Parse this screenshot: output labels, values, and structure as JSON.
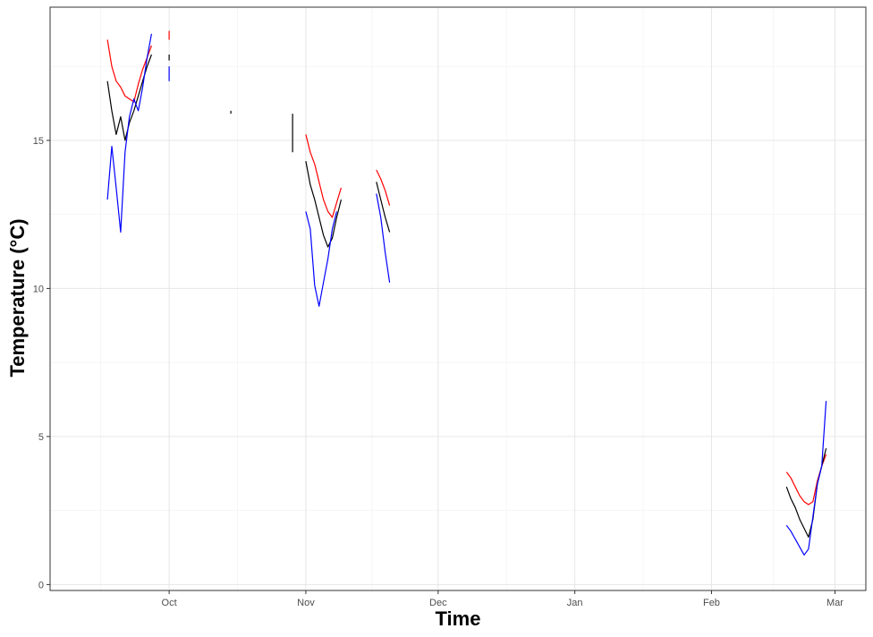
{
  "chart_data": {
    "type": "line",
    "title": "",
    "xlabel": "Time",
    "ylabel": "Temperature (°C)",
    "x_tick_labels": [
      "Oct",
      "Nov",
      "Dec",
      "Jan",
      "Feb",
      "Mar"
    ],
    "x_tick_dates": [
      "2021-10-01",
      "2021-11-01",
      "2021-12-01",
      "2022-01-01",
      "2022-02-01",
      "2022-03-01"
    ],
    "y_ticks": [
      0,
      5,
      10,
      15
    ],
    "xlim": [
      "2021-09-04",
      "2022-03-08"
    ],
    "ylim": [
      -0.2,
      19.5
    ],
    "grid": true,
    "legend": "none",
    "series": [
      {
        "color": "#ff0000",
        "segments": [
          [
            [
              "2021-09-17",
              18.4
            ],
            [
              "2021-09-18",
              17.5
            ],
            [
              "2021-09-19",
              17.0
            ],
            [
              "2021-09-20",
              16.8
            ],
            [
              "2021-09-21",
              16.5
            ],
            [
              "2021-09-22",
              16.4
            ],
            [
              "2021-09-23",
              16.3
            ],
            [
              "2021-09-24",
              16.9
            ],
            [
              "2021-09-25",
              17.4
            ],
            [
              "2021-09-26",
              17.8
            ],
            [
              "2021-09-27",
              18.2
            ]
          ],
          [
            [
              "2021-10-01",
              18.7
            ],
            [
              "2021-10-01",
              18.4
            ]
          ],
          [
            [
              "2021-11-01",
              15.2
            ],
            [
              "2021-11-02",
              14.6
            ],
            [
              "2021-11-03",
              14.2
            ],
            [
              "2021-11-04",
              13.6
            ],
            [
              "2021-11-05",
              13.0
            ],
            [
              "2021-11-06",
              12.6
            ],
            [
              "2021-11-07",
              12.4
            ],
            [
              "2021-11-08",
              12.9
            ],
            [
              "2021-11-09",
              13.4
            ]
          ],
          [
            [
              "2021-11-17",
              14.0
            ],
            [
              "2021-11-18",
              13.7
            ],
            [
              "2021-11-19",
              13.3
            ],
            [
              "2021-11-20",
              12.8
            ]
          ],
          [
            [
              "2022-02-18",
              3.8
            ],
            [
              "2022-02-19",
              3.6
            ],
            [
              "2022-02-20",
              3.3
            ],
            [
              "2022-02-21",
              3.0
            ],
            [
              "2022-02-22",
              2.8
            ],
            [
              "2022-02-23",
              2.7
            ],
            [
              "2022-02-24",
              2.8
            ],
            [
              "2022-02-25",
              3.5
            ],
            [
              "2022-02-26",
              4.0
            ],
            [
              "2022-02-27",
              4.4
            ]
          ]
        ]
      },
      {
        "color": "#000000",
        "segments": [
          [
            [
              "2021-09-17",
              17.0
            ],
            [
              "2021-09-18",
              16.0
            ],
            [
              "2021-09-19",
              15.2
            ],
            [
              "2021-09-20",
              15.8
            ],
            [
              "2021-09-21",
              15.0
            ],
            [
              "2021-09-22",
              15.6
            ],
            [
              "2021-09-23",
              16.0
            ],
            [
              "2021-09-24",
              16.5
            ],
            [
              "2021-09-25",
              17.0
            ],
            [
              "2021-09-26",
              17.5
            ],
            [
              "2021-09-27",
              17.9
            ]
          ],
          [
            [
              "2021-10-01",
              17.9
            ],
            [
              "2021-10-01",
              17.7
            ]
          ],
          [
            [
              "2021-10-15",
              16.0
            ],
            [
              "2021-10-15",
              15.9
            ]
          ],
          [
            [
              "2021-10-29",
              15.9
            ],
            [
              "2021-10-29",
              14.6
            ]
          ],
          [
            [
              "2021-11-01",
              14.3
            ],
            [
              "2021-11-02",
              13.5
            ],
            [
              "2021-11-03",
              13.0
            ],
            [
              "2021-11-04",
              12.4
            ],
            [
              "2021-11-05",
              11.8
            ],
            [
              "2021-11-06",
              11.4
            ],
            [
              "2021-11-07",
              11.7
            ],
            [
              "2021-11-08",
              12.4
            ],
            [
              "2021-11-09",
              13.0
            ]
          ],
          [
            [
              "2021-11-17",
              13.6
            ],
            [
              "2021-11-18",
              13.0
            ],
            [
              "2021-11-19",
              12.4
            ],
            [
              "2021-11-20",
              11.9
            ]
          ],
          [
            [
              "2022-02-18",
              3.3
            ],
            [
              "2022-02-19",
              2.9
            ],
            [
              "2022-02-20",
              2.6
            ],
            [
              "2022-02-21",
              2.2
            ],
            [
              "2022-02-22",
              1.9
            ],
            [
              "2022-02-23",
              1.6
            ],
            [
              "2022-02-24",
              2.2
            ],
            [
              "2022-02-25",
              3.4
            ],
            [
              "2022-02-26",
              4.0
            ],
            [
              "2022-02-27",
              4.6
            ]
          ]
        ]
      },
      {
        "color": "#0000ff",
        "segments": [
          [
            [
              "2021-09-17",
              13.0
            ],
            [
              "2021-09-18",
              14.8
            ],
            [
              "2021-09-19",
              13.4
            ],
            [
              "2021-09-20",
              11.9
            ],
            [
              "2021-09-21",
              14.6
            ],
            [
              "2021-09-22",
              15.8
            ],
            [
              "2021-09-23",
              16.4
            ],
            [
              "2021-09-24",
              16.0
            ],
            [
              "2021-09-25",
              16.8
            ],
            [
              "2021-09-26",
              17.8
            ],
            [
              "2021-09-27",
              18.6
            ]
          ],
          [
            [
              "2021-10-01",
              17.5
            ],
            [
              "2021-10-01",
              17.0
            ]
          ],
          [
            [
              "2021-11-01",
              12.6
            ],
            [
              "2021-11-02",
              12.0
            ],
            [
              "2021-11-03",
              10.1
            ],
            [
              "2021-11-04",
              9.4
            ],
            [
              "2021-11-05",
              10.2
            ],
            [
              "2021-11-06",
              11.0
            ],
            [
              "2021-11-07",
              12.0
            ],
            [
              "2021-11-08",
              12.6
            ]
          ],
          [
            [
              "2021-11-17",
              13.2
            ],
            [
              "2021-11-18",
              12.4
            ],
            [
              "2021-11-19",
              11.2
            ],
            [
              "2021-11-20",
              10.2
            ]
          ],
          [
            [
              "2022-02-18",
              2.0
            ],
            [
              "2022-02-19",
              1.8
            ],
            [
              "2022-02-22",
              1.0
            ],
            [
              "2022-02-23",
              1.2
            ],
            [
              "2022-02-25",
              3.4
            ],
            [
              "2022-02-26",
              4.0
            ],
            [
              "2022-02-27",
              6.2
            ]
          ]
        ]
      }
    ]
  }
}
